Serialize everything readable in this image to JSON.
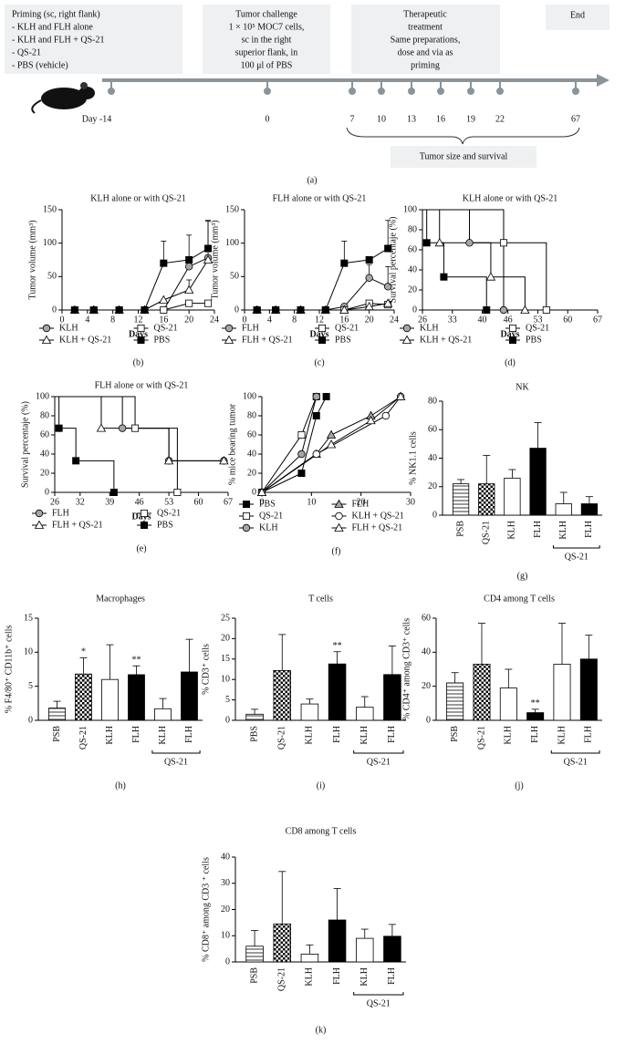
{
  "timeline": {
    "phases": [
      {
        "lines": [
          "Priming (sc, right flank)",
          "- KLH and FLH alone",
          "- KLH and FLH + QS-21",
          "- QS-21",
          "- PBS (vehicle)"
        ]
      },
      {
        "lines": [
          "Tumor challenge",
          "1 × 10⁵ MOC7 cells,",
          "sc in the right",
          "superior flank, in",
          "100 μl of PBS"
        ]
      },
      {
        "lines": [
          "Therapeutic",
          "treatment",
          "Same preparations,",
          "dose and via as",
          "priming"
        ]
      },
      {
        "lines": [
          "End"
        ]
      }
    ],
    "days": [
      "Day -14",
      "0",
      "7",
      "10",
      "13",
      "16",
      "19",
      "22",
      "67"
    ],
    "outcome": "Tumor size and survival",
    "panel_label": "(a)"
  },
  "chart_data": [
    {
      "type": "line",
      "title": "KLH alone or with QS-21",
      "x_label": "Days",
      "y_label": "Tumor volume (mm³)",
      "panel_label": "(b)",
      "x": [
        2,
        5,
        9,
        13,
        16,
        20,
        23
      ],
      "xlim": [
        0,
        24
      ],
      "xticks": [
        0,
        4,
        8,
        12,
        16,
        20,
        24
      ],
      "ylim": [
        0,
        150
      ],
      "yticks": [
        0,
        50,
        100,
        150
      ],
      "series": [
        {
          "name": "KLH",
          "marker": "circle",
          "color": "#a6a6a6",
          "values": [
            0,
            0,
            0,
            0,
            0,
            65,
            78
          ],
          "errors": [
            null,
            null,
            null,
            null,
            null,
            null,
            55
          ]
        },
        {
          "name": "QS-21",
          "marker": "square",
          "color": "#ffffff",
          "values": [
            0,
            0,
            0,
            0,
            0,
            10,
            10
          ]
        },
        {
          "name": "KLH + QS-21",
          "marker": "triangle",
          "color": "#ffffff",
          "values": [
            0,
            0,
            0,
            0,
            15,
            30,
            75
          ],
          "errors": [
            null,
            null,
            null,
            null,
            null,
            15,
            null
          ]
        },
        {
          "name": "PBS",
          "marker": "square",
          "color": "#000000",
          "values": [
            0,
            0,
            0,
            0,
            70,
            75,
            92
          ],
          "errors": [
            null,
            null,
            null,
            null,
            33,
            37,
            42
          ]
        }
      ]
    },
    {
      "type": "line",
      "title": "FLH alone or with QS-21",
      "x_label": "Days",
      "y_label": "Tumor volume (mm³)",
      "panel_label": "(c)",
      "x": [
        2,
        5,
        9,
        13,
        16,
        20,
        23
      ],
      "xlim": [
        0,
        24
      ],
      "xticks": [
        0,
        4,
        8,
        12,
        16,
        20,
        24
      ],
      "ylim": [
        0,
        150
      ],
      "yticks": [
        0,
        50,
        100,
        150
      ],
      "series": [
        {
          "name": "FLH",
          "marker": "circle",
          "color": "#a6a6a6",
          "values": [
            0,
            0,
            0,
            0,
            5,
            48,
            35
          ],
          "errors": [
            null,
            null,
            null,
            null,
            null,
            20,
            30
          ]
        },
        {
          "name": "QS-21",
          "marker": "square",
          "color": "#ffffff",
          "values": [
            0,
            0,
            0,
            0,
            0,
            10,
            8
          ]
        },
        {
          "name": "FLH + QS-21",
          "marker": "triangle",
          "color": "#ffffff",
          "values": [
            0,
            0,
            0,
            0,
            0,
            5,
            10
          ]
        },
        {
          "name": "PBS",
          "marker": "square",
          "color": "#000000",
          "values": [
            0,
            0,
            0,
            0,
            70,
            75,
            92
          ],
          "errors": [
            null,
            null,
            null,
            null,
            33,
            null,
            42
          ]
        }
      ]
    },
    {
      "type": "line",
      "step": true,
      "title": "KLH alone or with QS-21",
      "x_label": "Days",
      "y_label": "Survival percentaje (%)",
      "panel_label": "(d)",
      "xlim": [
        26,
        67
      ],
      "xticks": [
        26,
        33,
        40,
        46,
        53,
        60,
        67
      ],
      "ylim": [
        0,
        100
      ],
      "yticks": [
        0,
        20,
        40,
        60,
        80,
        100
      ],
      "series": [
        {
          "name": "KLH",
          "marker": "circle",
          "color": "#a6a6a6",
          "x": [
            37,
            45
          ],
          "values": [
            67,
            0
          ]
        },
        {
          "name": "QS-21",
          "marker": "square",
          "color": "#ffffff",
          "x": [
            45,
            55
          ],
          "values": [
            67,
            0
          ]
        },
        {
          "name": "KLH + QS-21",
          "marker": "triangle",
          "color": "#ffffff",
          "x": [
            30,
            42,
            50
          ],
          "values": [
            67,
            33,
            0
          ]
        },
        {
          "name": "PBS",
          "marker": "square",
          "color": "#000000",
          "x": [
            27,
            31,
            41
          ],
          "values": [
            67,
            33,
            0
          ]
        }
      ]
    },
    {
      "type": "line",
      "step": true,
      "title": "FLH alone or with QS-21",
      "x_label": "Days",
      "y_label": "Survival percentaje (%)",
      "panel_label": "(e)",
      "xlim": [
        26,
        67
      ],
      "xticks": [
        26,
        32,
        39,
        46,
        53,
        60,
        67
      ],
      "ylim": [
        0,
        100
      ],
      "yticks": [
        0,
        20,
        40,
        60,
        80,
        100
      ],
      "series": [
        {
          "name": "FLH",
          "marker": "circle",
          "color": "#a6a6a6",
          "x": [
            42,
            53,
            66
          ],
          "values": [
            67,
            33,
            33
          ]
        },
        {
          "name": "QS-21",
          "marker": "square",
          "color": "#ffffff",
          "x": [
            45,
            55
          ],
          "values": [
            67,
            0
          ]
        },
        {
          "name": "FLH + QS-21",
          "marker": "triangle",
          "color": "#ffffff",
          "x": [
            37,
            53,
            66
          ],
          "values": [
            67,
            33,
            33
          ]
        },
        {
          "name": "PBS",
          "marker": "square",
          "color": "#000000",
          "x": [
            27,
            31,
            40
          ],
          "values": [
            67,
            33,
            0
          ]
        }
      ]
    },
    {
      "type": "line",
      "y_label": "% mice bearing tumor",
      "panel_label": "(f)",
      "xlim": [
        0,
        30
      ],
      "xticks": [
        0,
        10,
        20,
        30
      ],
      "ylim": [
        0,
        100
      ],
      "yticks": [
        0,
        20,
        40,
        60,
        80,
        100
      ],
      "series": [
        {
          "name": "PBS",
          "marker": "square",
          "color": "#000000",
          "x": [
            0,
            8,
            11,
            13
          ],
          "values": [
            0,
            20,
            80,
            100
          ]
        },
        {
          "name": "FLH",
          "marker": "triangle",
          "color": "#a6a6a6",
          "x": [
            0,
            11,
            14,
            22,
            28
          ],
          "values": [
            0,
            40,
            60,
            80,
            100
          ]
        },
        {
          "name": "QS-21",
          "marker": "square",
          "color": "#ffffff",
          "x": [
            0,
            8,
            11
          ],
          "values": [
            0,
            60,
            100
          ]
        },
        {
          "name": "KLH + QS-21",
          "marker": "circle",
          "color": "#ffffff",
          "x": [
            0,
            11,
            25,
            28
          ],
          "values": [
            0,
            40,
            80,
            100
          ]
        },
        {
          "name": "KLH",
          "marker": "circle",
          "color": "#a6a6a6",
          "x": [
            0,
            8,
            11
          ],
          "values": [
            0,
            40,
            100
          ]
        },
        {
          "name": "FLH + QS-21",
          "marker": "triangle",
          "color": "#ffffff",
          "x": [
            0,
            14,
            22,
            28
          ],
          "values": [
            0,
            50,
            75,
            100
          ]
        }
      ]
    },
    {
      "type": "bar",
      "title": "NK",
      "y_label": "% NK1.1 cells",
      "panel_label": "(g)",
      "group_label": "QS-21",
      "categories": [
        "PSB",
        "QS-21",
        "KLH",
        "FLH",
        "KLH",
        "FLH"
      ],
      "fills": [
        "stripes",
        "checker",
        "white",
        "black",
        "white",
        "black"
      ],
      "values": [
        22,
        22,
        26,
        47,
        8,
        8
      ],
      "errors": [
        3,
        20,
        6,
        18,
        8,
        5
      ],
      "ylim": [
        0,
        80
      ],
      "yticks": [
        0,
        20,
        40,
        60,
        80
      ]
    },
    {
      "type": "bar",
      "title": "Macrophages",
      "y_label": "% F4/80⁺ CD11b⁺ cells",
      "panel_label": "(h)",
      "group_label": "QS-21",
      "categories": [
        "PSB",
        "QS-21",
        "KLH",
        "FLH",
        "KLH",
        "FLH"
      ],
      "fills": [
        "stripes",
        "checker",
        "white",
        "black",
        "white",
        "black"
      ],
      "values": [
        1.8,
        6.8,
        6,
        6.7,
        1.7,
        7.1
      ],
      "errors": [
        1,
        2.4,
        5.1,
        1.3,
        1.5,
        4.8
      ],
      "ylim": [
        0,
        15
      ],
      "yticks": [
        0,
        5,
        10,
        15
      ],
      "annotations": [
        {
          "index": 1,
          "text": "*"
        },
        {
          "index": 3,
          "text": "**"
        }
      ]
    },
    {
      "type": "bar",
      "title": "T cells",
      "y_label": "% CD3⁺ cells",
      "panel_label": "(i)",
      "group_label": "QS-21",
      "categories": [
        "PBS",
        "QS-21",
        "KLH",
        "FLH",
        "KLH",
        "FLH"
      ],
      "fills": [
        "stripes",
        "checker",
        "white",
        "black",
        "white",
        "black"
      ],
      "values": [
        1.5,
        12.2,
        4,
        13.8,
        3.2,
        11.2
      ],
      "errors": [
        1.2,
        8.8,
        1.2,
        3,
        2.6,
        7
      ],
      "ylim": [
        0,
        25
      ],
      "yticks": [
        0,
        5,
        10,
        15,
        20,
        25
      ],
      "annotations": [
        {
          "index": 3,
          "text": "**"
        }
      ]
    },
    {
      "type": "bar",
      "title": "CD4 among T cells",
      "y_label": "% CD4⁺ among CD3⁺ cells",
      "panel_label": "(j)",
      "group_label": "QS-21",
      "categories": [
        "PSB",
        "QS-21",
        "KLH",
        "FLH",
        "KLH",
        "FLH"
      ],
      "fills": [
        "stripes",
        "checker",
        "white",
        "black",
        "white",
        "black"
      ],
      "values": [
        22,
        33,
        19,
        4.5,
        33,
        36
      ],
      "errors": [
        6,
        24,
        11,
        2,
        24,
        14
      ],
      "ylim": [
        0,
        60
      ],
      "yticks": [
        0,
        20,
        40,
        60
      ],
      "annotations": [
        {
          "index": 3,
          "text": "**"
        }
      ]
    },
    {
      "type": "bar",
      "title": "CD8 among T cells",
      "y_label": "% CD8⁺ among CD3 ⁺ cells",
      "panel_label": "(k)",
      "group_label": "QS-21",
      "categories": [
        "PSB",
        "QS-21",
        "KLH",
        "FLH",
        "KLH",
        "FLH"
      ],
      "fills": [
        "stripes",
        "checker",
        "white",
        "black",
        "white",
        "black"
      ],
      "values": [
        6,
        14.5,
        3,
        16,
        9,
        9.8
      ],
      "errors": [
        6,
        20,
        3.5,
        12,
        3.5,
        4.5
      ],
      "ylim": [
        0,
        40
      ],
      "yticks": [
        0,
        10,
        20,
        30,
        40
      ]
    }
  ]
}
